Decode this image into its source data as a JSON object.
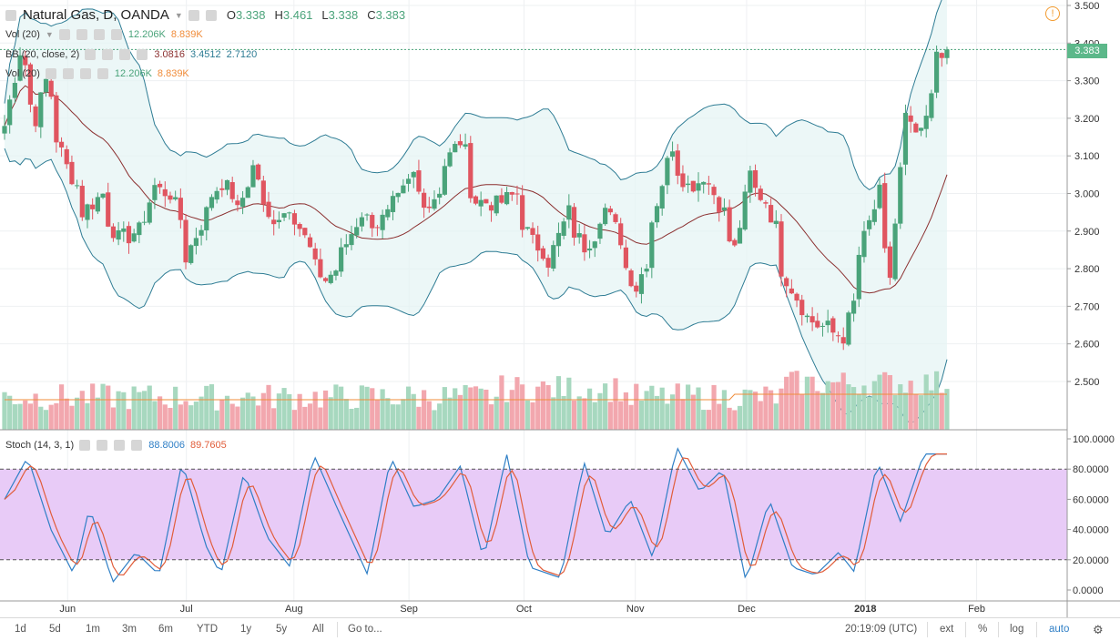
{
  "header": {
    "title": "Natural Gas, D, OANDA",
    "ohlc": [
      {
        "k": "O",
        "v": "3.338"
      },
      {
        "k": "H",
        "v": "3.461"
      },
      {
        "k": "L",
        "v": "3.338"
      },
      {
        "k": "C",
        "v": "3.383"
      }
    ]
  },
  "legends": {
    "vol": {
      "label": "Vol (20)",
      "v1": "12.206K",
      "v2": "8.839K"
    },
    "bb": {
      "label": "BB (20, close, 2)",
      "v1": "3.0816",
      "v2": "3.4512",
      "v3": "2.7120"
    },
    "vol2": {
      "label": "Vol (20)",
      "v1": "12.206K",
      "v2": "8.839K"
    },
    "stoch": {
      "label": "Stoch (14, 3, 1)",
      "v1": "88.8006",
      "v2": "89.7605"
    }
  },
  "colors": {
    "up": "#4aa37a",
    "down": "#e05560",
    "bb_band": "#2e7c94",
    "bb_basis": "#8b2f2f",
    "stoch_k": "#2f7fc6",
    "stoch_d": "#e15d3a",
    "vol_ma": "#f08c3a",
    "stoch_fill": "#e8cbf7"
  },
  "last_price_tag": "3.383",
  "toolbar": {
    "ranges": [
      "1d",
      "5d",
      "1m",
      "3m",
      "6m",
      "YTD",
      "1y",
      "5y",
      "All"
    ],
    "goto": "Go to...",
    "time": "20:19:09 (UTC)",
    "right": [
      "ext",
      "%",
      "log",
      "auto"
    ]
  },
  "chart_data": {
    "type": "candlestick",
    "title": "Natural Gas, D, OANDA",
    "price_axis": {
      "ticks": [
        "3.500",
        "3.400",
        "3.300",
        "3.200",
        "3.100",
        "3.000",
        "2.900",
        "2.800",
        "2.700",
        "2.600",
        "2.500"
      ],
      "range": [
        2.42,
        3.5
      ]
    },
    "stoch_axis": {
      "ticks": [
        "100.0000",
        "80.0000",
        "60.0000",
        "40.0000",
        "20.0000",
        "0.0000"
      ],
      "range": [
        0,
        100
      ],
      "band": [
        20,
        80
      ]
    },
    "time_axis": [
      "Jun",
      "Jul",
      "Aug",
      "Sep",
      "Oct",
      "Nov",
      "Dec",
      "2018",
      "Feb"
    ],
    "anchors": [
      [
        "2017-05-15",
        3.18
      ],
      [
        "2017-05-18",
        3.38
      ],
      [
        "2017-05-23",
        3.2
      ],
      [
        "2017-05-25",
        3.3
      ],
      [
        "2017-05-31",
        3.07
      ],
      [
        "2017-06-05",
        2.95
      ],
      [
        "2017-06-09",
        3.0
      ],
      [
        "2017-06-14",
        2.88
      ],
      [
        "2017-06-20",
        2.9
      ],
      [
        "2017-06-23",
        3.02
      ],
      [
        "2017-06-28",
        3.0
      ],
      [
        "2017-07-03",
        2.83
      ],
      [
        "2017-07-07",
        2.95
      ],
      [
        "2017-07-12",
        3.03
      ],
      [
        "2017-07-17",
        2.95
      ],
      [
        "2017-07-20",
        3.07
      ],
      [
        "2017-07-25",
        2.93
      ],
      [
        "2017-07-31",
        2.97
      ],
      [
        "2017-08-04",
        2.85
      ],
      [
        "2017-08-09",
        2.77
      ],
      [
        "2017-08-14",
        2.84
      ],
      [
        "2017-08-18",
        2.95
      ],
      [
        "2017-08-23",
        2.92
      ],
      [
        "2017-08-29",
        2.98
      ],
      [
        "2017-09-01",
        3.05
      ],
      [
        "2017-09-06",
        2.97
      ],
      [
        "2017-09-12",
        3.1
      ],
      [
        "2017-09-14",
        3.14
      ],
      [
        "2017-09-19",
        2.98
      ],
      [
        "2017-09-25",
        2.97
      ],
      [
        "2017-09-29",
        3.0
      ],
      [
        "2017-10-04",
        2.87
      ],
      [
        "2017-10-09",
        2.82
      ],
      [
        "2017-10-13",
        2.95
      ],
      [
        "2017-10-18",
        2.86
      ],
      [
        "2017-10-24",
        2.96
      ],
      [
        "2017-10-27",
        2.88
      ],
      [
        "2017-11-01",
        2.75
      ],
      [
        "2017-11-06",
        2.93
      ],
      [
        "2017-11-10",
        3.13
      ],
      [
        "2017-11-15",
        3.02
      ],
      [
        "2017-11-20",
        3.05
      ],
      [
        "2017-11-24",
        2.95
      ],
      [
        "2017-11-28",
        2.85
      ],
      [
        "2017-12-01",
        3.05
      ],
      [
        "2017-12-06",
        2.98
      ],
      [
        "2017-12-11",
        2.8
      ],
      [
        "2017-12-15",
        2.7
      ],
      [
        "2017-12-20",
        2.65
      ],
      [
        "2017-12-27",
        2.62
      ],
      [
        "2018-01-02",
        2.88
      ],
      [
        "2018-01-05",
        3.0
      ],
      [
        "2018-01-09",
        2.78
      ],
      [
        "2018-01-12",
        3.2
      ],
      [
        "2018-01-17",
        3.15
      ],
      [
        "2018-01-19",
        3.25
      ],
      [
        "2018-01-22",
        3.38
      ],
      [
        "2018-01-24",
        3.383
      ]
    ],
    "stoch_anchors": [
      [
        0,
        60
      ],
      [
        3,
        88
      ],
      [
        6,
        40
      ],
      [
        9,
        10
      ],
      [
        11,
        55
      ],
      [
        14,
        5
      ],
      [
        17,
        25
      ],
      [
        20,
        10
      ],
      [
        23,
        85
      ],
      [
        26,
        30
      ],
      [
        28,
        10
      ],
      [
        31,
        78
      ],
      [
        34,
        35
      ],
      [
        37,
        15
      ],
      [
        40,
        90
      ],
      [
        43,
        55
      ],
      [
        47,
        10
      ],
      [
        50,
        88
      ],
      [
        53,
        55
      ],
      [
        56,
        60
      ],
      [
        59,
        82
      ],
      [
        62,
        20
      ],
      [
        65,
        90
      ],
      [
        68,
        15
      ],
      [
        72,
        8
      ],
      [
        75,
        85
      ],
      [
        78,
        35
      ],
      [
        81,
        60
      ],
      [
        84,
        20
      ],
      [
        87,
        95
      ],
      [
        90,
        65
      ],
      [
        93,
        80
      ],
      [
        96,
        5
      ],
      [
        99,
        60
      ],
      [
        102,
        15
      ],
      [
        105,
        10
      ],
      [
        108,
        25
      ],
      [
        110,
        12
      ],
      [
        113,
        85
      ],
      [
        116,
        45
      ],
      [
        119,
        90
      ],
      [
        122,
        90
      ]
    ]
  }
}
